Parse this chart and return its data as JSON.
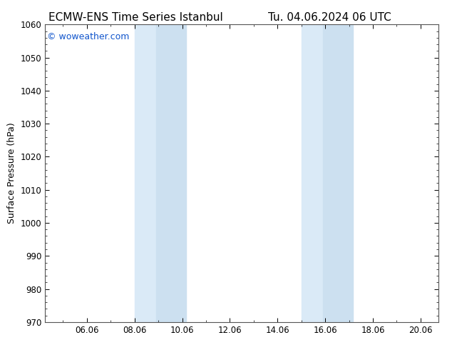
{
  "title_left": "ECMW-ENS Time Series Istanbul",
  "title_right": "Tu. 04.06.2024 06 UTC",
  "ylabel": "Surface Pressure (hPa)",
  "ylim": [
    970,
    1060
  ],
  "yticks": [
    970,
    980,
    990,
    1000,
    1010,
    1020,
    1030,
    1040,
    1050,
    1060
  ],
  "xlim_start": 4.25,
  "xlim_end": 20.75,
  "xtick_labels": [
    "06.06",
    "08.06",
    "10.06",
    "12.06",
    "14.06",
    "16.06",
    "18.06",
    "20.06"
  ],
  "xtick_positions": [
    6,
    8,
    10,
    12,
    14,
    16,
    18,
    20
  ],
  "shaded_bands": [
    {
      "x_start": 8.0,
      "x_end": 8.9,
      "color": "#daeaf7"
    },
    {
      "x_start": 8.9,
      "x_end": 10.15,
      "color": "#cce0f0"
    },
    {
      "x_start": 15.0,
      "x_end": 15.9,
      "color": "#daeaf7"
    },
    {
      "x_start": 15.9,
      "x_end": 17.15,
      "color": "#cce0f0"
    }
  ],
  "watermark_text": "© woweather.com",
  "watermark_color": "#1155cc",
  "background_color": "#ffffff",
  "plot_bg_color": "#ffffff",
  "border_color": "#555555",
  "title_fontsize": 11,
  "label_fontsize": 9,
  "tick_fontsize": 8.5,
  "watermark_fontsize": 9,
  "fig_width": 6.34,
  "fig_height": 4.9,
  "dpi": 100
}
